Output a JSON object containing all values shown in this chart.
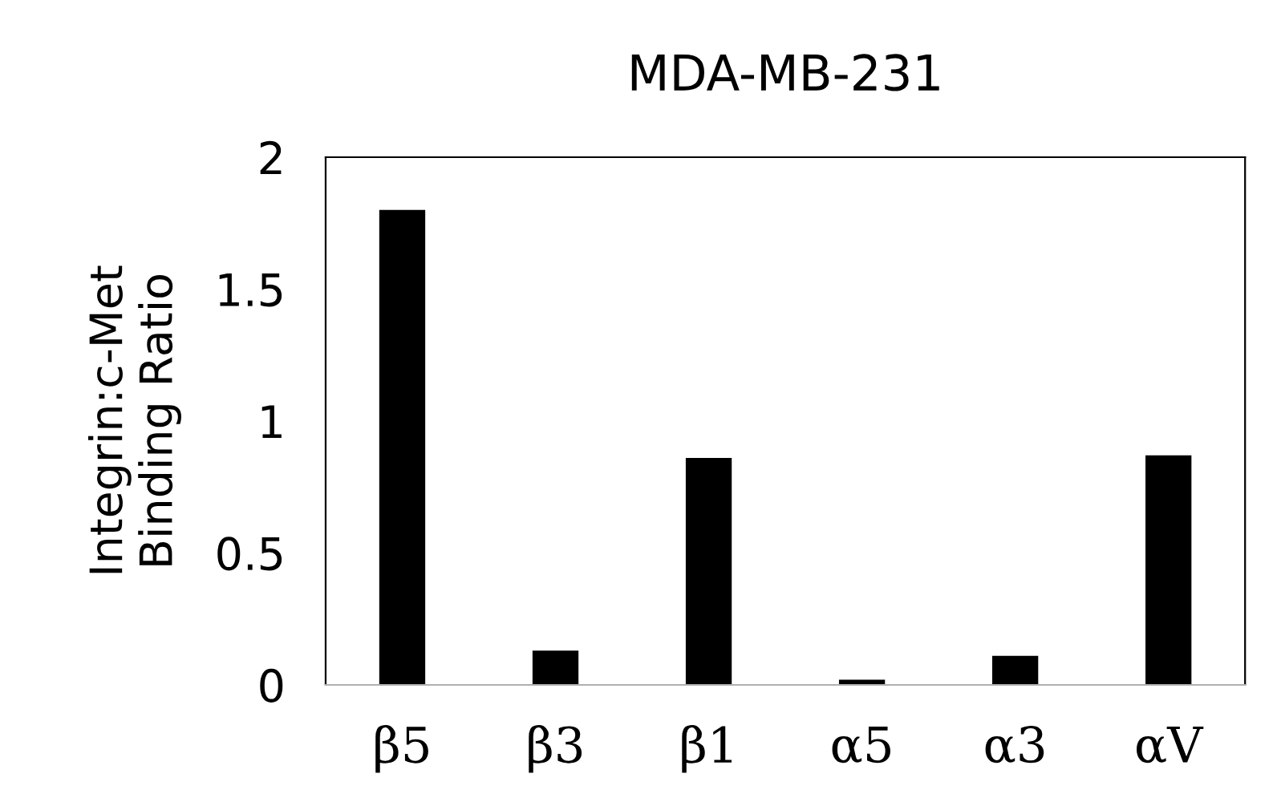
{
  "chart_data": {
    "type": "bar",
    "title": "MDA-MB-231",
    "ylabel": "Integrin:c-Met\nBinding Ratio",
    "categories": [
      "β5",
      "β3",
      "β1",
      "α5",
      "α3",
      "αV"
    ],
    "values": [
      1.8,
      0.13,
      0.86,
      0.02,
      0.11,
      0.87
    ],
    "color": "#000000",
    "ylim": [
      0,
      2
    ],
    "yticks": [
      0,
      0.5,
      1,
      1.5,
      2
    ],
    "grid": false
  }
}
